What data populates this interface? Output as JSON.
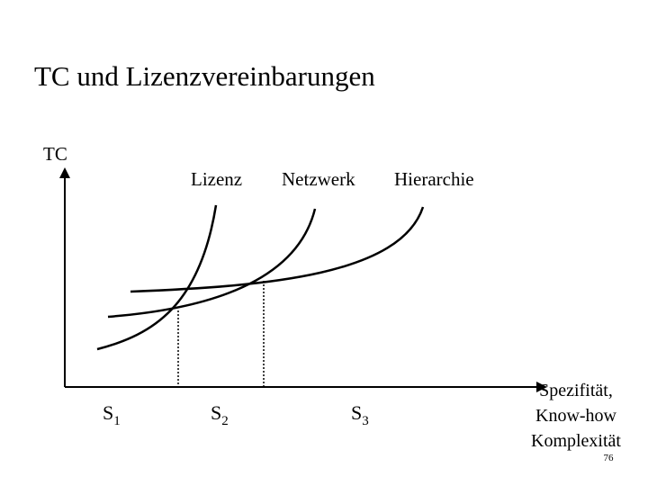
{
  "title": "TC und Lizenzvereinbarungen",
  "y_axis_label": "TC",
  "curves": [
    {
      "label": "Lizenz"
    },
    {
      "label": "Netzwerk"
    },
    {
      "label": "Hierarchie"
    }
  ],
  "x_points": [
    {
      "main": "S",
      "sub": "1"
    },
    {
      "main": "S",
      "sub": "2"
    },
    {
      "main": "S",
      "sub": "3"
    }
  ],
  "x_axis_label": [
    "Spezifität,",
    "Know-how",
    "Komplexität"
  ],
  "page_number": "76"
}
